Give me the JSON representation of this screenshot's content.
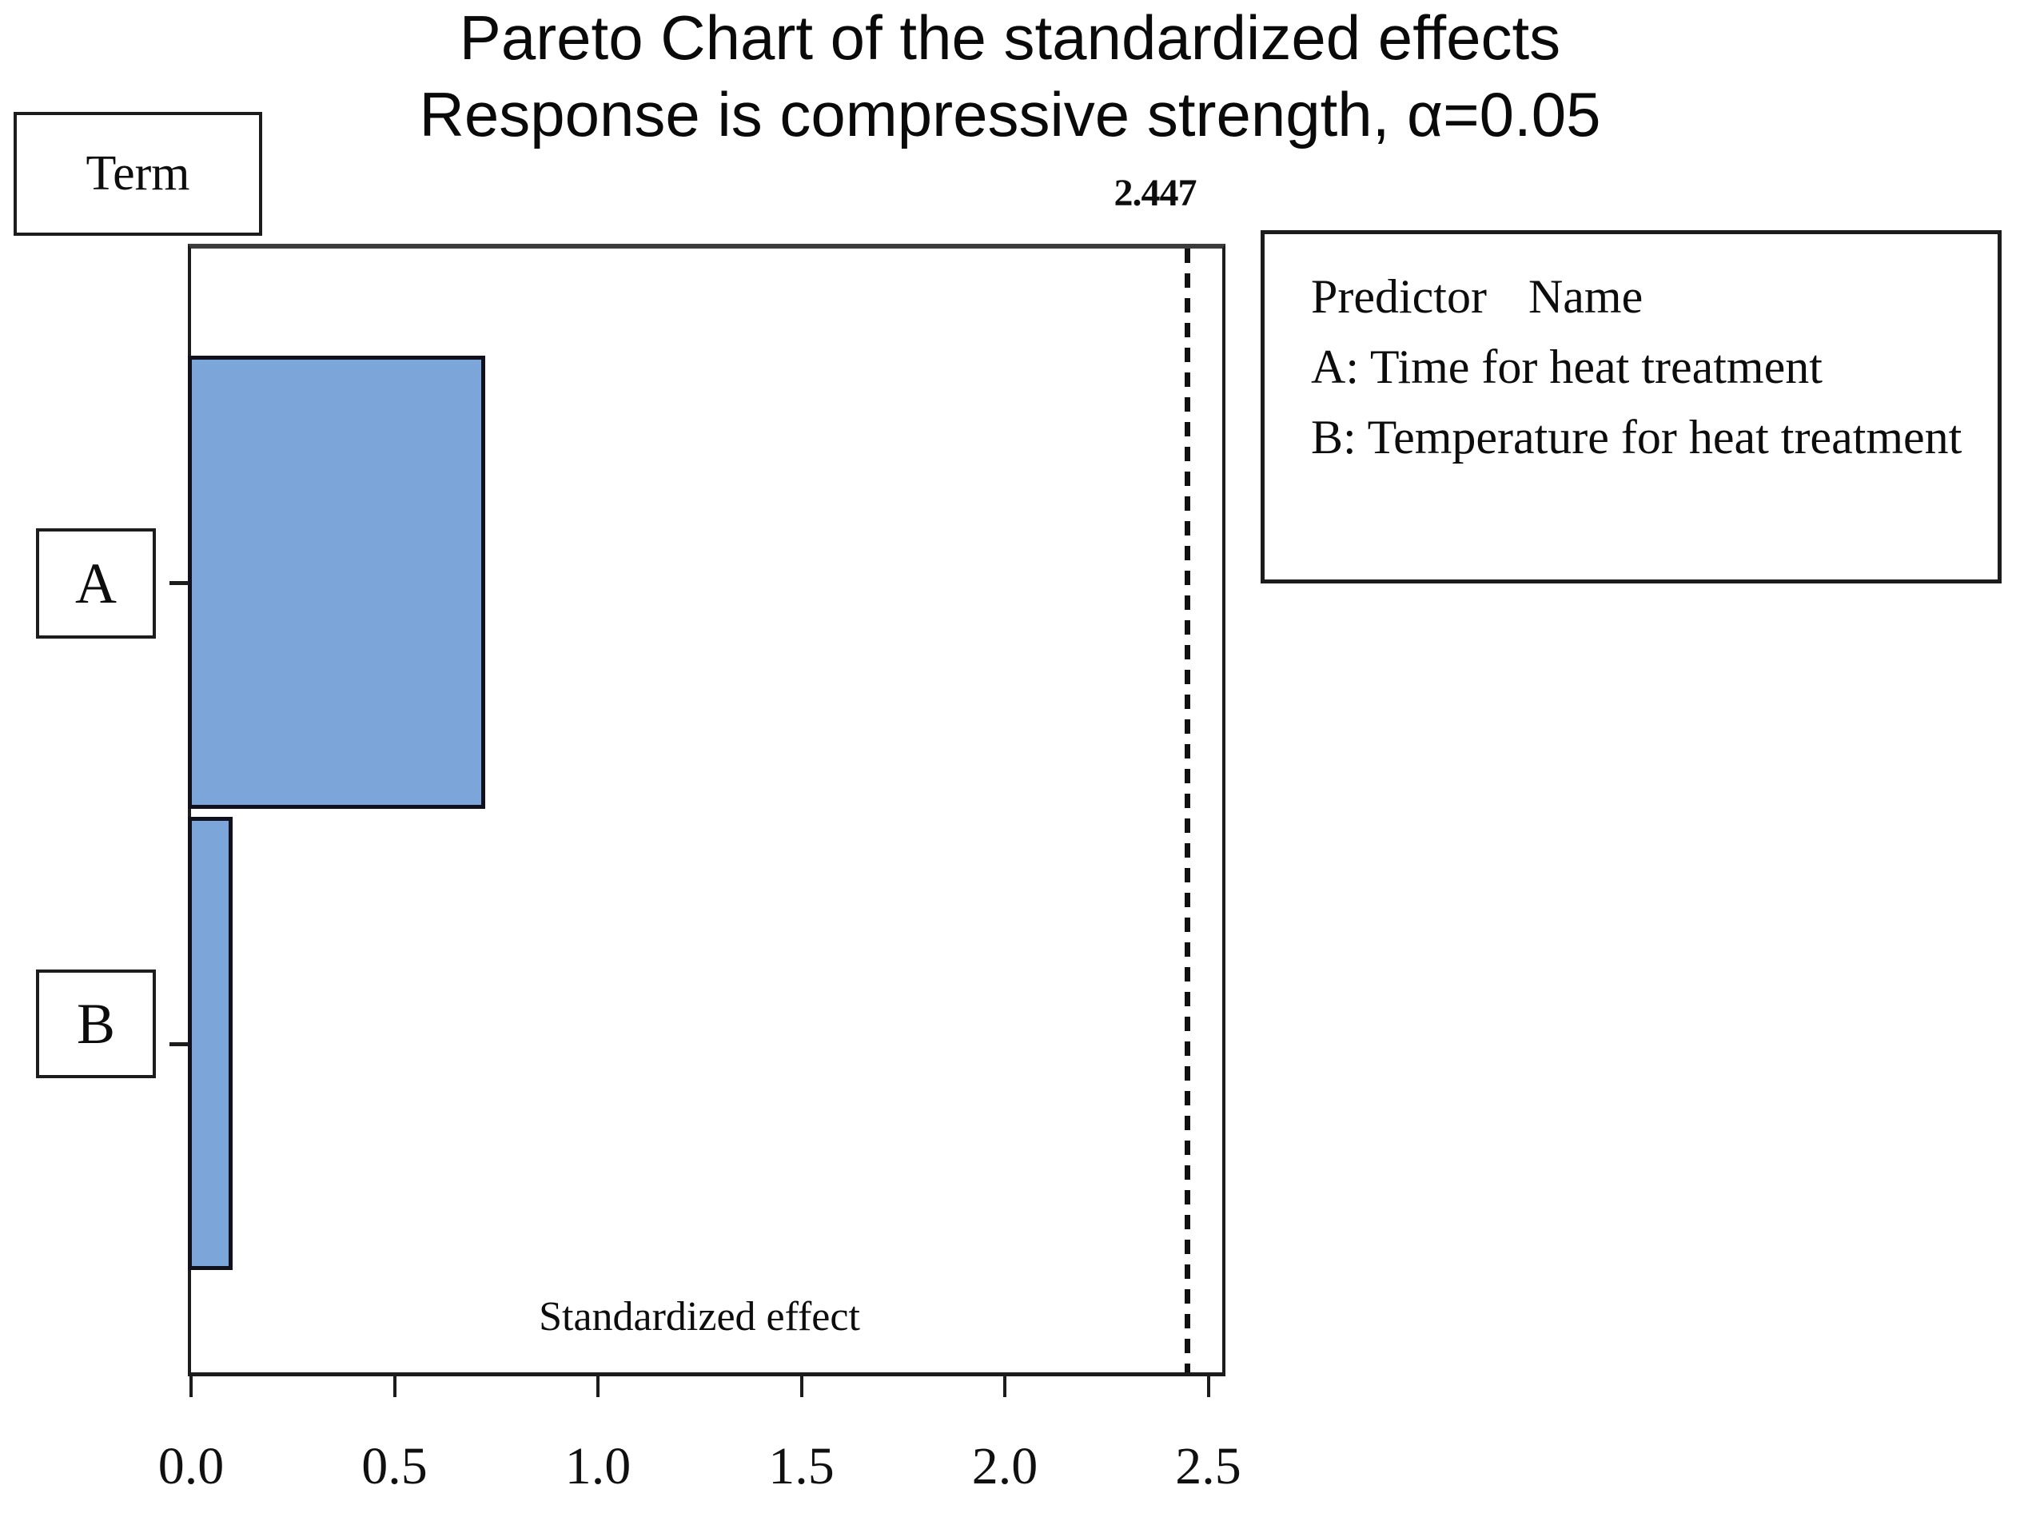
{
  "chart_data": {
    "type": "bar",
    "orientation": "horizontal",
    "title": "Pareto Chart of the standardized effects",
    "subtitle": "Response is compressive strength, α=0.05",
    "alpha": 0.05,
    "categories": [
      "A",
      "B"
    ],
    "values": [
      0.73,
      0.11
    ],
    "xlabel": "Standardized effect",
    "ylabel": "Term",
    "x_ticks": [
      0,
      0.5,
      1,
      1.5,
      2,
      2.5
    ],
    "x_tick_labels": [
      "0.0",
      "0.5",
      "1.0",
      "1.5",
      "2.0",
      "2.5"
    ],
    "xlim": [
      0,
      2.55
    ],
    "reference_line": 2.447,
    "reference_label": "2.447",
    "grid": false,
    "legend_position": "upper-right-outside",
    "bar_color": "#7ca6da",
    "bar_border_color": "#11111e"
  },
  "legend": {
    "header_col1": "Predictor",
    "header_col2": "Name",
    "entries": [
      "A: Time for heat treatment",
      "B: Temperature for heat treatment"
    ]
  }
}
